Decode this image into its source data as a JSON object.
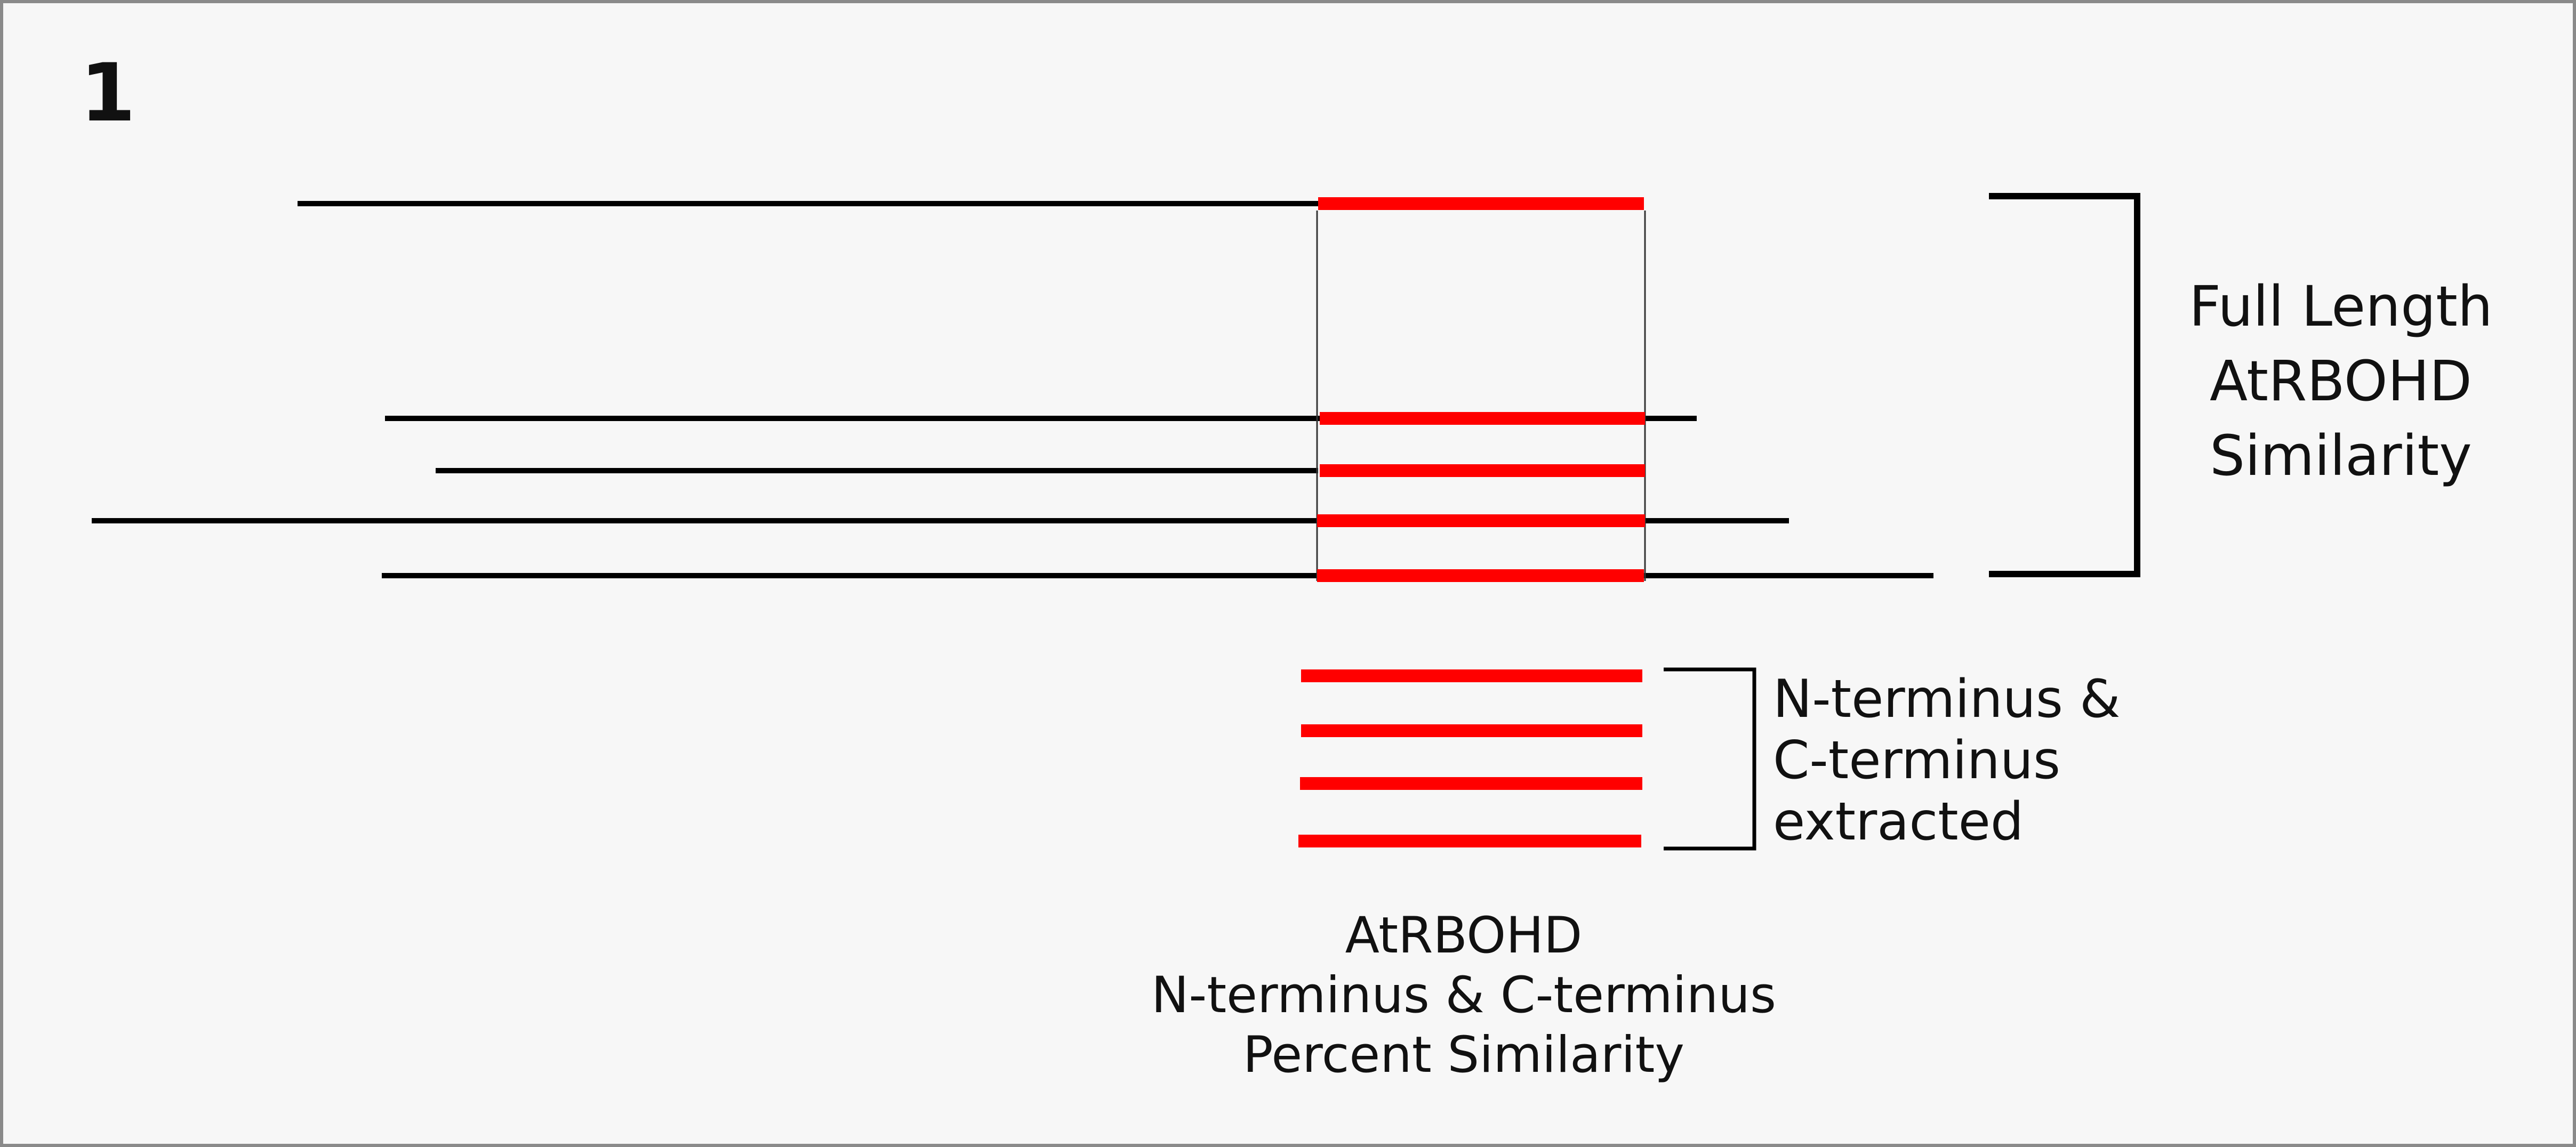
{
  "figure": {
    "panel_number": "1",
    "full_length_label": [
      "Full Length",
      "AtRBOHD",
      "Similarity"
    ],
    "terminus_extracted_label": [
      "N-terminus &",
      "C-terminus",
      "extracted"
    ],
    "bottom_label": [
      "AtRBOHD",
      "N-terminus & C-terminus",
      "Percent Similarity"
    ]
  },
  "colors": {
    "sequence_line": "#000000",
    "terminus_segment": "#ff0000",
    "background": "#f7f7f7",
    "border": "#8a8a8a"
  }
}
